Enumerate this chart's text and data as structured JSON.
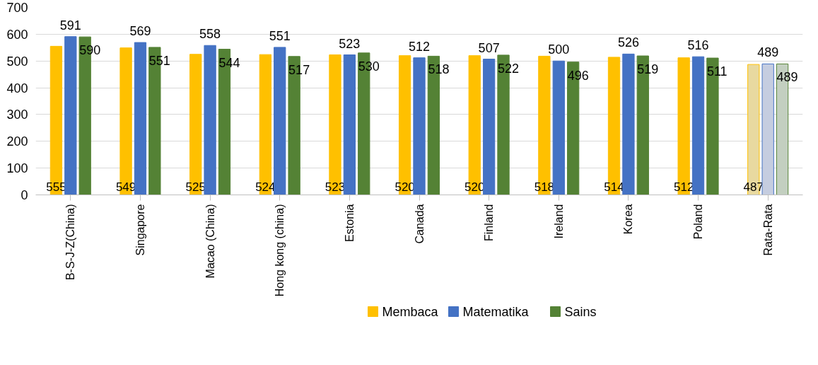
{
  "chart_data": {
    "type": "bar",
    "categories": [
      "B-S-J-Z(China)",
      "Singapore",
      "Macao (China)",
      "Hong kong (china)",
      "Estonia",
      "Canada",
      "Finland",
      "Ireland",
      "Korea",
      "Poland",
      "Rata-Rata"
    ],
    "series": [
      {
        "name": "Membaca",
        "color": "#ffc000",
        "colors": [
          "#ffc000",
          "#ffc000",
          "#ffc000",
          "#ffc000",
          "#ffc000",
          "#ffc000",
          "#ffc000",
          "#ffc000",
          "#ffc000",
          "#ffc000",
          "#e8d9a0"
        ],
        "values": [
          555,
          549,
          525,
          524,
          523,
          520,
          520,
          518,
          514,
          512,
          487
        ]
      },
      {
        "name": "Matematika",
        "color": "#4472c4",
        "colors": [
          "#4472c4",
          "#4472c4",
          "#4472c4",
          "#4472c4",
          "#4472c4",
          "#4472c4",
          "#4472c4",
          "#4472c4",
          "#4472c4",
          "#4472c4",
          "#c5cde0"
        ],
        "values": [
          591,
          569,
          558,
          551,
          523,
          512,
          507,
          500,
          526,
          516,
          489
        ]
      },
      {
        "name": "Sains",
        "color": "#548235",
        "colors": [
          "#548235",
          "#548235",
          "#548235",
          "#548235",
          "#548235",
          "#548235",
          "#548235",
          "#548235",
          "#548235",
          "#548235",
          "#c3cfc0"
        ],
        "values": [
          590,
          551,
          544,
          517,
          530,
          518,
          522,
          496,
          519,
          511,
          489
        ]
      }
    ],
    "ylim": [
      0,
      700
    ],
    "yticks": [
      0,
      100,
      200,
      300,
      400,
      500,
      600,
      700
    ],
    "grid": "y",
    "legend": "bottom",
    "data_labels": true
  }
}
